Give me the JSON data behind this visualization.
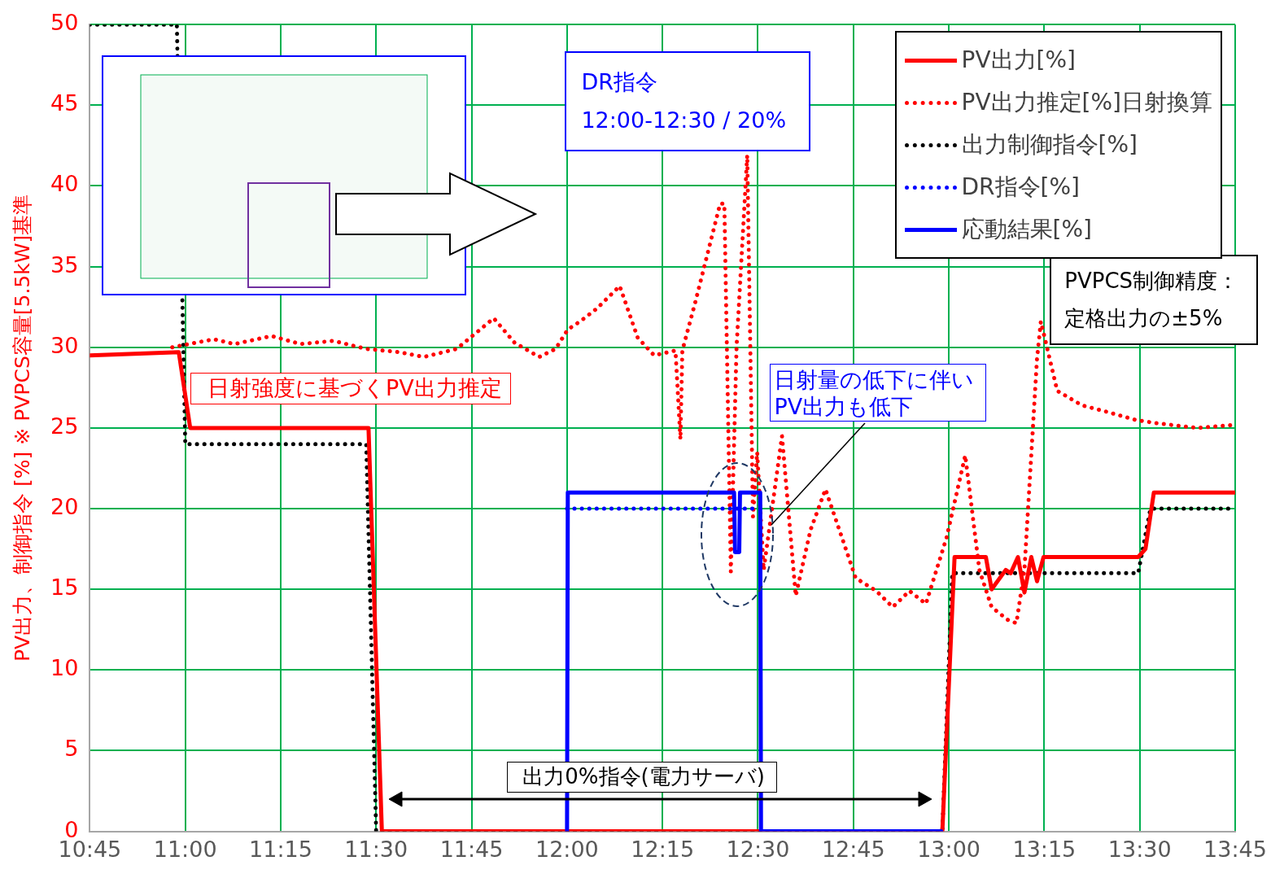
{
  "chart_data": {
    "type": "line",
    "ylabel": "PV出力、制御指令 [%] ※ PVPCS容量[5.5kW]基準",
    "xlim": [
      10.75,
      13.75
    ],
    "xticks": [
      {
        "value": 10.75,
        "label": "10:45"
      },
      {
        "value": 11,
        "label": "11:00"
      },
      {
        "value": 11.25,
        "label": "11:15"
      },
      {
        "value": 11.5,
        "label": "11:30"
      },
      {
        "value": 11.75,
        "label": "11:45"
      },
      {
        "value": 12,
        "label": "12:00"
      },
      {
        "value": 12.25,
        "label": "12:15"
      },
      {
        "value": 12.5,
        "label": "12:30"
      },
      {
        "value": 12.75,
        "label": "12:45"
      },
      {
        "value": 13,
        "label": "13:00"
      },
      {
        "value": 13.25,
        "label": "13:15"
      },
      {
        "value": 13.5,
        "label": "13:30"
      },
      {
        "value": 13.75,
        "label": "13:45"
      }
    ],
    "ylim": [
      0,
      50
    ],
    "yticks": [
      0,
      5,
      10,
      15,
      20,
      25,
      30,
      35,
      40,
      45,
      50
    ],
    "grid": true,
    "legend": "top right",
    "marker": "none",
    "series": [
      {
        "name": "PV出力[%]",
        "color": "#ff0000",
        "line_style": "solid",
        "x": [
          10.75,
          10.983,
          11.013,
          11.48,
          11.515,
          12.983,
          13.015,
          13.032,
          13.097,
          13.112,
          13.149,
          13.162,
          13.181,
          13.198,
          13.216,
          13.231,
          13.248,
          13.496,
          13.515,
          13.537,
          13.75
        ],
        "values": [
          29.5,
          29.7,
          25,
          25,
          0,
          0,
          17,
          17,
          17,
          15,
          16.2,
          16,
          17,
          14.8,
          17,
          15.5,
          17,
          17,
          17.5,
          21,
          21
        ]
      },
      {
        "name": "PV出力推定[%]日射換算",
        "color": "#ff0000",
        "line_style": "dotted",
        "x": [
          10.966,
          11.075,
          11.129,
          11.226,
          11.302,
          11.388,
          11.474,
          11.56,
          11.625,
          11.711,
          11.808,
          11.862,
          11.927,
          11.97,
          12.002,
          12.034,
          12.078,
          12.138,
          12.185,
          12.228,
          12.284,
          12.297,
          12.302,
          12.336,
          12.401,
          12.412,
          12.429,
          12.444,
          12.472,
          12.487,
          12.498,
          12.515,
          12.563,
          12.599,
          12.638,
          12.677,
          12.756,
          12.81,
          12.853,
          12.897,
          12.94,
          12.994,
          13.043,
          13.08,
          13.112,
          13.155,
          13.177,
          13.198,
          13.231,
          13.241,
          13.284,
          13.349,
          13.414,
          13.489,
          13.543,
          13.651,
          13.75
        ],
        "values": [
          30,
          30.5,
          30.2,
          30.7,
          30.2,
          30.4,
          29.9,
          29.7,
          29.4,
          29.9,
          31.8,
          30.3,
          29.4,
          29.9,
          31.1,
          31.6,
          32.4,
          33.8,
          30.6,
          29.5,
          29.8,
          24.3,
          29.8,
          32.8,
          38.9,
          38.9,
          16.1,
          30,
          41.9,
          19.5,
          23.5,
          16.2,
          24.5,
          14.6,
          18.7,
          21.2,
          15.7,
          14.9,
          13.9,
          14.9,
          14.1,
          18.2,
          23.3,
          16.2,
          13.9,
          13.1,
          12.9,
          16.2,
          29.3,
          31.6,
          27.3,
          26.4,
          26,
          25.5,
          25.3,
          25,
          25.2
        ]
      },
      {
        "name": "出力制御指令[%]",
        "color": "#000000",
        "line_style": "dotted",
        "x": [
          10.75,
          10.978,
          11,
          11.474,
          11.5,
          12.983,
          13.009,
          13.496,
          13.528,
          13.75
        ],
        "values": [
          50,
          50,
          24,
          24,
          0,
          0,
          16,
          16,
          20,
          20
        ]
      },
      {
        "name": "DR指令[%]",
        "color": "#0000ff",
        "line_style": "dotted",
        "x": [
          12,
          12.5
        ],
        "values": [
          20,
          20
        ]
      },
      {
        "name": "応動結果[%]",
        "color": "#0000ff",
        "line_style": "solid",
        "x": [
          12,
          12.002,
          12.4375,
          12.44,
          12.451,
          12.453,
          12.506,
          12.508,
          12.98
        ],
        "values": [
          0,
          21,
          21,
          17.3,
          17.3,
          21,
          21,
          0,
          0
        ]
      }
    ],
    "annotations": [
      "DR指令",
      "12:00-12:30 / 20%",
      "PVPCS制御精度：",
      "定格出力の±5%",
      "日射強度に基づくPV出力推定",
      "日射量の低下に伴い",
      {
        "text": "PV出力も低下",
        "x": 12.535,
        "y": 19
      },
      "出力0%指令(電力サーバ)"
    ]
  }
}
